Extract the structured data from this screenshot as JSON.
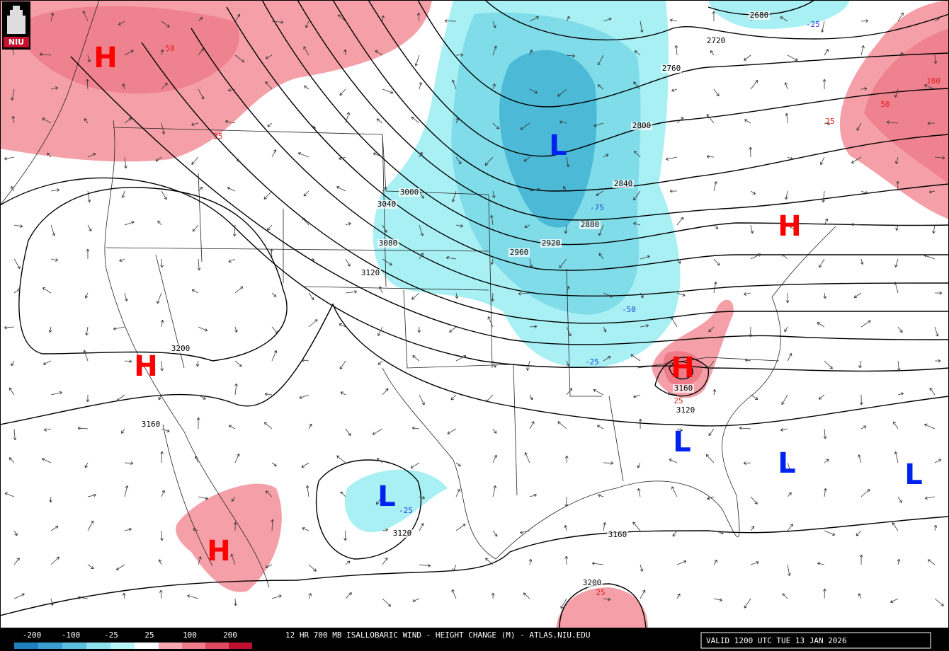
{
  "header": {
    "logo": "NIU"
  },
  "contour_labels": [
    "2680",
    "2720",
    "2760",
    "2800",
    "2840",
    "2880",
    "2920",
    "2960",
    "3000",
    "3040",
    "3080",
    "3120",
    "3200",
    "3160",
    "3160",
    "3120",
    "3120",
    "3160",
    "3200"
  ],
  "change_labels": [
    "50",
    "25",
    "-25",
    "-75",
    "-50",
    "-25",
    "25",
    "-25",
    "25",
    "50",
    "100",
    "25"
  ],
  "centers": [
    "H",
    "L",
    "H",
    "H",
    "H",
    "L",
    "L",
    "L",
    "L",
    "H"
  ],
  "legend": {
    "labels": [
      "-200",
      "-100",
      "-25",
      "25",
      "100",
      "200"
    ]
  },
  "footer": {
    "title": "12 HR 700 MB ISALLOBARIC WIND - HEIGHT CHANGE (M) - ATLAS.NIU.EDU",
    "valid": "VALID 1200 UTC TUE 13 JAN 2026"
  }
}
